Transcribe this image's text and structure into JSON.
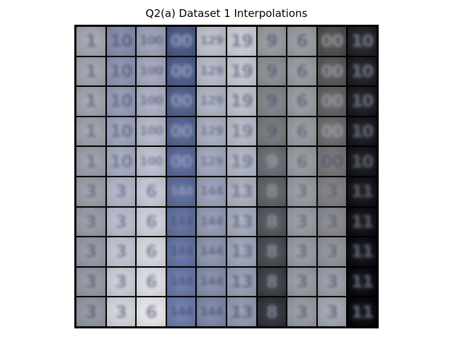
{
  "figure": {
    "title": "Q2(a) Dataset 1 Interpolations"
  },
  "grid": {
    "rows": 10,
    "cols": 10,
    "column_backgrounds": [
      "#a9adb6",
      "#8e95b2",
      "#a4a9c0",
      "#56638d",
      "#c4c7d2",
      "#cfd2d9",
      "#9ea2a6",
      "#9fa2a6",
      "#5b5958",
      "#2f3035"
    ],
    "column_backgrounds_bottom": [
      "#9a9eaa",
      "#d7d9e0",
      "#e9eaee",
      "#7585b1",
      "#8790ae",
      "#9aa2b7",
      "#3e4047",
      "#9da1a8",
      "#a9adb6",
      "#15171c"
    ],
    "column_glyphs_top": [
      "1",
      "10",
      "100",
      "00",
      "129",
      "19",
      "9",
      "6",
      "00",
      "10"
    ],
    "column_glyphs_bottom": [
      "3",
      "3",
      "6",
      "144",
      "144",
      "13",
      "8",
      "3",
      "3",
      "11"
    ]
  }
}
